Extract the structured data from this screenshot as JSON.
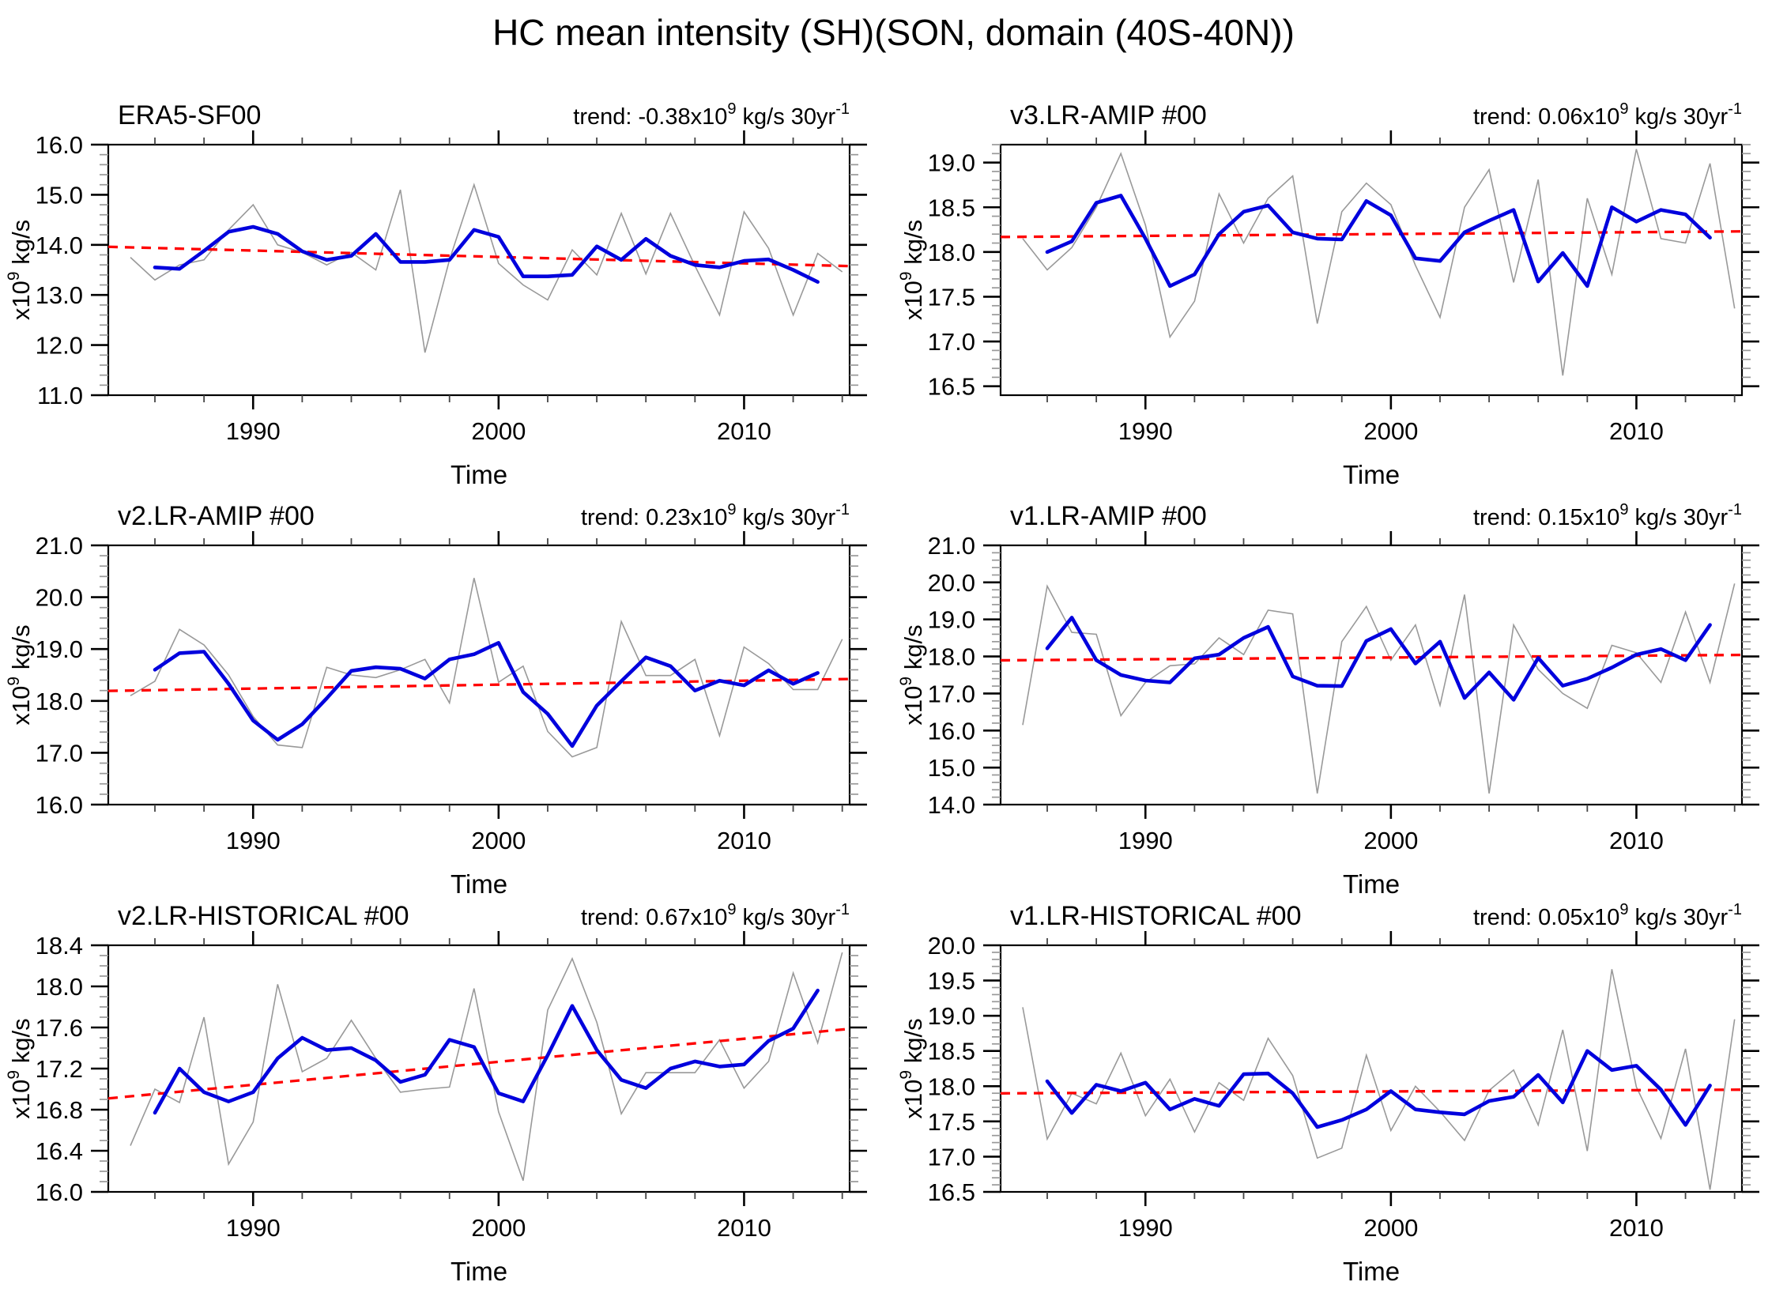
{
  "figure": {
    "title": "HC mean intensity (SH)(SON, domain (40S-40N))",
    "xlabel": "Time",
    "ylabel_parts": {
      "base": "x10",
      "sup": "9",
      "rest": " kg/s"
    },
    "trend_parts": {
      "prefix": "trend: ",
      "x10": "x10",
      "sup1": "9",
      "units": " kg/s 30yr",
      "sup2": "-1"
    },
    "colors": {
      "annual_line": "#999999",
      "smoothed_line": "#0000dd",
      "trend_line": "#ff0000",
      "axis": "#000000",
      "minor_tick_y": "#999999",
      "minor_tick_x": "#444444",
      "background": "#ffffff"
    }
  },
  "chart_data": [
    {
      "type": "line",
      "id": "era5-sf00",
      "title": "ERA5-SF00",
      "trend_value": "-0.38",
      "xlabel": "Time",
      "ylim": [
        11.0,
        16.0
      ],
      "ytick_major": [
        16.0,
        15.0,
        14.0,
        13.0,
        12.0,
        11.0
      ],
      "ytick_labels": [
        "16.0",
        "15.0",
        "14.0",
        "13.0",
        "12.0",
        "11.0"
      ],
      "ytick_minor_step": 0.2,
      "xlim": [
        1984.1,
        2014.3
      ],
      "xtick_major": [
        1990,
        2000,
        2010
      ],
      "xtick_minor": [
        1986,
        1988,
        1992,
        1994,
        1996,
        1998,
        2002,
        2004,
        2006,
        2008,
        2012,
        2014
      ],
      "annual_start_year": 1985,
      "annual": [
        13.75,
        13.3,
        13.6,
        13.7,
        14.3,
        14.8,
        14.0,
        13.85,
        13.6,
        13.85,
        13.5,
        15.1,
        11.85,
        13.7,
        15.2,
        13.63,
        13.2,
        12.9,
        13.9,
        13.4,
        14.63,
        13.42,
        14.63,
        13.58,
        12.6,
        14.66,
        13.93,
        12.6,
        13.83,
        13.46
      ],
      "smoothed_start_year": 1986,
      "smoothed": [
        13.55,
        13.52,
        13.88,
        14.26,
        14.36,
        14.22,
        13.87,
        13.7,
        13.78,
        14.22,
        13.66,
        13.66,
        13.7,
        14.3,
        14.16,
        13.37,
        13.37,
        13.4,
        13.97,
        13.7,
        14.12,
        13.78,
        13.6,
        13.55,
        13.68,
        13.71,
        13.5,
        13.26
      ],
      "trend": {
        "year0": 1985,
        "value0": 13.95,
        "year1": 2014,
        "value1": 13.58
      }
    },
    {
      "type": "line",
      "id": "v3-lr-amip-00",
      "title": "v3.LR-AMIP  #00",
      "trend_value": "0.06",
      "xlabel": "Time",
      "ylim": [
        16.4,
        19.2
      ],
      "ytick_major": [
        19.0,
        18.5,
        18.0,
        17.5,
        17.0,
        16.5
      ],
      "ytick_labels": [
        "19.0",
        "18.5",
        "18.0",
        "17.5",
        "17.0",
        "16.5"
      ],
      "ytick_minor_step": 0.1,
      "xlim": [
        1984.1,
        2014.3
      ],
      "xtick_major": [
        1990,
        2000,
        2010
      ],
      "xtick_minor": [
        1986,
        1988,
        1992,
        1994,
        1996,
        1998,
        2002,
        2004,
        2006,
        2008,
        2012,
        2014
      ],
      "annual_start_year": 1985,
      "annual": [
        18.15,
        17.8,
        18.05,
        18.5,
        19.1,
        18.3,
        17.05,
        17.45,
        18.65,
        18.1,
        18.6,
        18.85,
        17.2,
        18.45,
        18.77,
        18.53,
        17.85,
        17.27,
        18.5,
        18.92,
        17.66,
        18.81,
        16.62,
        18.6,
        17.75,
        19.15,
        18.15,
        18.1,
        18.99,
        17.37
      ],
      "smoothed_start_year": 1986,
      "smoothed": [
        18.0,
        18.12,
        18.55,
        18.63,
        18.15,
        17.62,
        17.75,
        18.2,
        18.45,
        18.52,
        18.22,
        18.15,
        18.14,
        18.57,
        18.41,
        17.93,
        17.9,
        18.22,
        18.35,
        18.47,
        17.67,
        17.99,
        17.62,
        18.5,
        18.34,
        18.47,
        18.42,
        18.16
      ],
      "trend": {
        "year0": 1985,
        "value0": 18.17,
        "year1": 2014,
        "value1": 18.23
      }
    },
    {
      "type": "line",
      "id": "v2-lr-amip-00",
      "title": "v2.LR-AMIP  #00",
      "trend_value": "0.23",
      "xlabel": "Time",
      "ylim": [
        16.0,
        21.0
      ],
      "ytick_major": [
        21.0,
        20.0,
        19.0,
        18.0,
        17.0,
        16.0
      ],
      "ytick_labels": [
        "21.0",
        "20.0",
        "19.0",
        "18.0",
        "17.0",
        "16.0"
      ],
      "ytick_minor_step": 0.2,
      "xlim": [
        1984.1,
        2014.3
      ],
      "xtick_major": [
        1990,
        2000,
        2010
      ],
      "xtick_minor": [
        1986,
        1988,
        1992,
        1994,
        1996,
        1998,
        2002,
        2004,
        2006,
        2008,
        2012,
        2014
      ],
      "annual_start_year": 1985,
      "annual": [
        18.1,
        18.38,
        19.38,
        19.08,
        18.5,
        17.7,
        17.15,
        17.1,
        18.65,
        18.5,
        18.45,
        18.6,
        18.8,
        17.96,
        20.37,
        18.36,
        18.67,
        17.41,
        16.92,
        17.1,
        19.53,
        18.49,
        18.49,
        18.8,
        17.33,
        19.04,
        18.72,
        18.22,
        18.22,
        19.19
      ],
      "smoothed_start_year": 1986,
      "smoothed": [
        18.6,
        18.92,
        18.95,
        18.33,
        17.62,
        17.25,
        17.55,
        18.05,
        18.58,
        18.65,
        18.62,
        18.43,
        18.8,
        18.9,
        19.12,
        18.17,
        17.75,
        17.13,
        17.91,
        18.38,
        18.84,
        18.67,
        18.2,
        18.39,
        18.3,
        18.59,
        18.33,
        18.54
      ],
      "trend": {
        "year0": 1985,
        "value0": 18.2,
        "year1": 2014,
        "value1": 18.42
      }
    },
    {
      "type": "line",
      "id": "v1-lr-amip-00",
      "title": "v1.LR-AMIP  #00",
      "trend_value": "0.15",
      "xlabel": "Time",
      "ylim": [
        14.0,
        21.0
      ],
      "ytick_major": [
        21.0,
        20.0,
        19.0,
        18.0,
        17.0,
        16.0,
        15.0,
        14.0
      ],
      "ytick_labels": [
        "21.0",
        "20.0",
        "19.0",
        "18.0",
        "17.0",
        "16.0",
        "15.0",
        "14.0"
      ],
      "ytick_minor_step": 0.2,
      "xlim": [
        1984.1,
        2014.3
      ],
      "xtick_major": [
        1990,
        2000,
        2010
      ],
      "xtick_minor": [
        1986,
        1988,
        1992,
        1994,
        1996,
        1998,
        2002,
        2004,
        2006,
        2008,
        2012,
        2014
      ],
      "annual_start_year": 1985,
      "annual": [
        16.15,
        19.9,
        18.65,
        18.6,
        16.4,
        17.3,
        17.75,
        17.8,
        18.5,
        18.05,
        19.25,
        19.15,
        14.3,
        18.4,
        19.35,
        17.9,
        18.85,
        16.68,
        19.67,
        14.3,
        18.85,
        17.65,
        17.0,
        16.6,
        18.3,
        18.1,
        17.3,
        19.2,
        17.3,
        19.97
      ],
      "smoothed_start_year": 1986,
      "smoothed": [
        18.22,
        19.05,
        17.9,
        17.5,
        17.35,
        17.3,
        17.95,
        18.05,
        18.5,
        18.8,
        17.46,
        17.21,
        17.2,
        18.42,
        18.74,
        17.81,
        18.4,
        16.88,
        17.57,
        16.83,
        17.96,
        17.21,
        17.4,
        17.7,
        18.05,
        18.2,
        17.9,
        18.85
      ],
      "trend": {
        "year0": 1985,
        "value0": 17.9,
        "year1": 2014,
        "value1": 18.04
      }
    },
    {
      "type": "line",
      "id": "v2-lr-historical-00",
      "title": "v2.LR-HISTORICAL  #00",
      "trend_value": "0.67",
      "xlabel": "Time",
      "ylim": [
        16.0,
        18.4
      ],
      "ytick_major": [
        18.4,
        18.0,
        17.6,
        17.2,
        16.8,
        16.4,
        16.0
      ],
      "ytick_labels": [
        "18.4",
        "18.0",
        "17.6",
        "17.2",
        "16.8",
        "16.4",
        "16.0"
      ],
      "ytick_minor_step": 0.1,
      "xlim": [
        1984.1,
        2014.3
      ],
      "xtick_major": [
        1990,
        2000,
        2010
      ],
      "xtick_minor": [
        1986,
        1988,
        1992,
        1994,
        1996,
        1998,
        2002,
        2004,
        2006,
        2008,
        2012,
        2014
      ],
      "annual_start_year": 1985,
      "annual": [
        16.45,
        17.0,
        16.87,
        17.7,
        16.27,
        16.68,
        18.02,
        17.17,
        17.3,
        17.67,
        17.3,
        16.97,
        17.0,
        17.02,
        17.98,
        16.78,
        16.11,
        17.77,
        18.27,
        17.65,
        16.76,
        17.16,
        17.16,
        17.16,
        17.48,
        17.01,
        17.27,
        18.13,
        17.45,
        18.33
      ],
      "smoothed_start_year": 1986,
      "smoothed": [
        16.77,
        17.2,
        16.97,
        16.88,
        16.97,
        17.3,
        17.5,
        17.38,
        17.4,
        17.28,
        17.07,
        17.14,
        17.48,
        17.41,
        16.96,
        16.88,
        17.33,
        17.81,
        17.38,
        17.09,
        17.01,
        17.2,
        17.27,
        17.22,
        17.24,
        17.47,
        17.59,
        17.96
      ],
      "trend": {
        "year0": 1985,
        "value0": 16.93,
        "year1": 2014,
        "value1": 17.58
      }
    },
    {
      "type": "line",
      "id": "v1-lr-historical-00",
      "title": "v1.LR-HISTORICAL  #00",
      "trend_value": "0.05",
      "xlabel": "Time",
      "ylim": [
        16.5,
        20.0
      ],
      "ytick_major": [
        20.0,
        19.5,
        19.0,
        18.5,
        18.0,
        17.5,
        17.0,
        16.5
      ],
      "ytick_labels": [
        "20.0",
        "19.5",
        "19.0",
        "18.5",
        "18.0",
        "17.5",
        "17.0",
        "16.5"
      ],
      "ytick_minor_step": 0.1,
      "xlim": [
        1984.1,
        2014.3
      ],
      "xtick_major": [
        1990,
        2000,
        2010
      ],
      "xtick_minor": [
        1986,
        1988,
        1992,
        1994,
        1996,
        1998,
        2002,
        2004,
        2006,
        2008,
        2012,
        2014
      ],
      "annual_start_year": 1985,
      "annual": [
        19.12,
        17.25,
        17.9,
        17.75,
        18.47,
        17.58,
        18.1,
        17.35,
        18.05,
        17.8,
        18.68,
        18.15,
        16.98,
        17.12,
        18.44,
        17.37,
        18.0,
        17.64,
        17.23,
        17.94,
        18.23,
        17.45,
        18.8,
        17.08,
        19.66,
        17.99,
        17.26,
        18.53,
        16.53,
        18.95
      ],
      "smoothed_start_year": 1986,
      "smoothed": [
        18.07,
        17.62,
        18.02,
        17.93,
        18.05,
        17.67,
        17.82,
        17.72,
        18.17,
        18.18,
        17.9,
        17.42,
        17.52,
        17.67,
        17.93,
        17.67,
        17.63,
        17.6,
        17.79,
        17.85,
        18.16,
        17.77,
        18.5,
        18.23,
        18.29,
        17.95,
        17.45,
        18.01
      ],
      "trend": {
        "year0": 1985,
        "value0": 17.9,
        "year1": 2014,
        "value1": 17.95
      }
    }
  ]
}
